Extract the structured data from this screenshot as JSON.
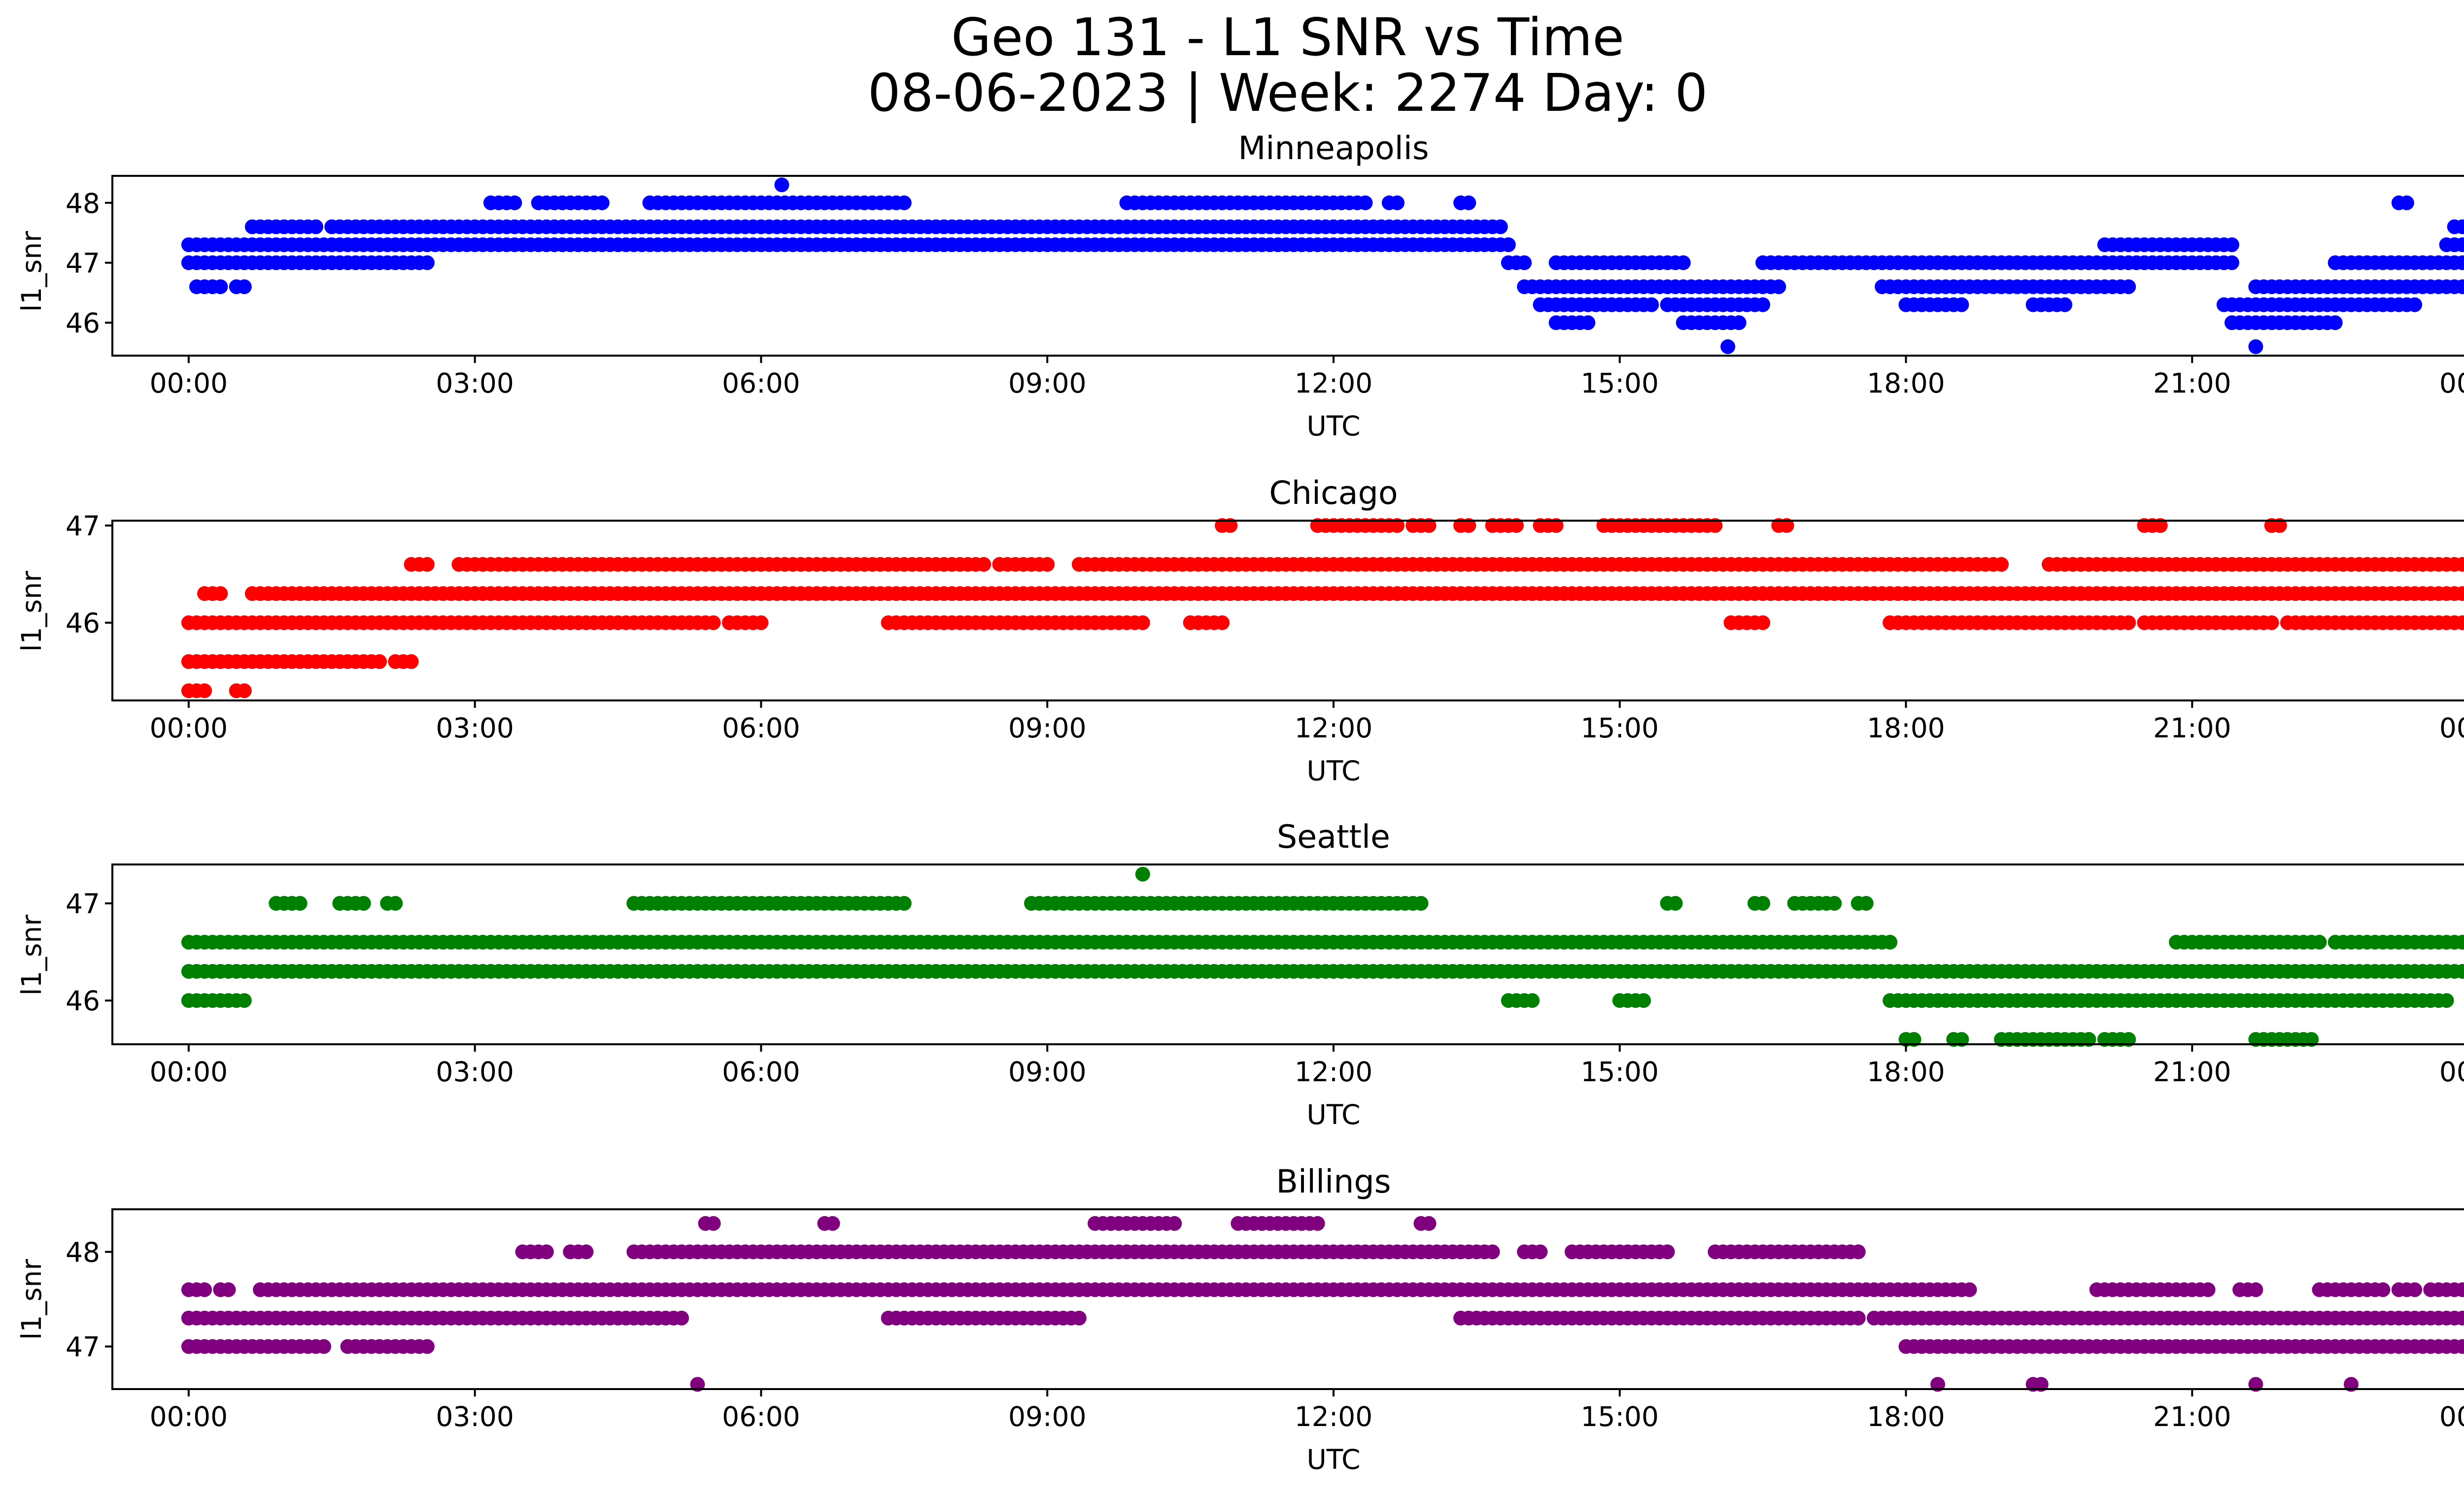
{
  "figure": {
    "title_line1": "Geo 131 - L1 SNR vs Time",
    "title_line2": "08-06-2023 | Week: 2274 Day: 0"
  },
  "chart_data": [
    {
      "type": "scatter",
      "title": "Minneapolis",
      "xlabel": "UTC",
      "ylabel": "l1_snr",
      "color": "#0000ff",
      "xlim": [
        "-00:48",
        "24:48"
      ],
      "ylim": [
        45.45,
        48.45
      ],
      "yticks": [
        46,
        47,
        48
      ],
      "xtick_labels": [
        "00:00",
        "03:00",
        "06:00",
        "09:00",
        "12:00",
        "15:00",
        "18:00",
        "21:00",
        "00:00"
      ],
      "series": [
        {
          "name": "snr 47.3",
          "y": 47.3,
          "ranges": [
            [
              "00:00",
              "13:50"
            ],
            [
              "20:05",
              "21:25"
            ],
            [
              "23:40",
              "24:00"
            ]
          ]
        },
        {
          "name": "snr 47.0",
          "y": 47.0,
          "ranges": [
            [
              "00:00",
              "02:30"
            ],
            [
              "13:50",
              "14:00"
            ],
            [
              "14:20",
              "15:40"
            ],
            [
              "16:30",
              "21:25"
            ],
            [
              "22:30",
              "24:00"
            ]
          ]
        },
        {
          "name": "snr 47.6",
          "y": 47.6,
          "ranges": [
            [
              "00:40",
              "01:20"
            ],
            [
              "01:30",
              "13:45"
            ],
            [
              "23:45",
              "23:55"
            ]
          ]
        },
        {
          "name": "snr 48.0",
          "y": 48.0,
          "ranges": [
            [
              "03:10",
              "03:25"
            ],
            [
              "03:40",
              "04:20"
            ],
            [
              "04:50",
              "07:30"
            ],
            [
              "09:50",
              "12:20"
            ],
            [
              "12:35",
              "12:40"
            ],
            [
              "13:20",
              "13:25"
            ],
            [
              "23:10",
              "23:15"
            ]
          ]
        },
        {
          "name": "snr 46.6",
          "y": 46.6,
          "ranges": [
            [
              "00:05",
              "00:10"
            ],
            [
              "00:15",
              "00:20"
            ],
            [
              "00:30",
              "00:35"
            ],
            [
              "14:00",
              "16:40"
            ],
            [
              "17:45",
              "20:20"
            ],
            [
              "21:40",
              "24:00"
            ]
          ]
        },
        {
          "name": "snr 46.3",
          "y": 46.3,
          "ranges": [
            [
              "14:10",
              "15:20"
            ],
            [
              "15:30",
              "16:30"
            ],
            [
              "18:00",
              "18:35"
            ],
            [
              "19:20",
              "19:40"
            ],
            [
              "21:20",
              "23:20"
            ]
          ]
        },
        {
          "name": "snr 46.0",
          "y": 46.0,
          "ranges": [
            [
              "14:20",
              "14:40"
            ],
            [
              "15:40",
              "16:00"
            ],
            [
              "16:05",
              "16:15"
            ],
            [
              "21:25",
              "22:30"
            ]
          ]
        },
        {
          "name": "snr 48.3",
          "y": 48.3,
          "points": [
            "06:13"
          ]
        },
        {
          "name": "snr 45.6",
          "y": 45.6,
          "points": [
            "16:08",
            "21:40"
          ]
        }
      ]
    },
    {
      "type": "scatter",
      "title": "Chicago",
      "xlabel": "UTC",
      "ylabel": "l1_snr",
      "color": "#ff0000",
      "xlim": [
        "-00:48",
        "24:48"
      ],
      "ylim": [
        45.2,
        47.05
      ],
      "yticks": [
        46,
        47
      ],
      "xtick_labels": [
        "00:00",
        "03:00",
        "06:00",
        "09:00",
        "12:00",
        "15:00",
        "18:00",
        "21:00",
        "00:00"
      ],
      "series": [
        {
          "name": "snr 46.3",
          "y": 46.3,
          "ranges": [
            [
              "00:10",
              "00:20"
            ],
            [
              "00:40",
              "24:00"
            ]
          ]
        },
        {
          "name": "snr 46.0",
          "y": 46.0,
          "ranges": [
            [
              "00:00",
              "03:00"
            ],
            [
              "03:00",
              "05:30"
            ],
            [
              "05:40",
              "06:00"
            ],
            [
              "07:20",
              "10:00"
            ],
            [
              "10:30",
              "10:50"
            ],
            [
              "16:10",
              "16:30"
            ],
            [
              "17:50",
              "20:20"
            ],
            [
              "20:30",
              "21:50"
            ],
            [
              "22:00",
              "24:00"
            ]
          ]
        },
        {
          "name": "snr 46.6",
          "y": 46.6,
          "ranges": [
            [
              "02:20",
              "02:30"
            ],
            [
              "02:50",
              "08:20"
            ],
            [
              "08:30",
              "09:00"
            ],
            [
              "09:20",
              "19:00"
            ],
            [
              "19:30",
              "24:00"
            ]
          ]
        },
        {
          "name": "snr 45.6",
          "y": 45.6,
          "ranges": [
            [
              "00:00",
              "02:00"
            ],
            [
              "02:10",
              "02:20"
            ]
          ]
        },
        {
          "name": "snr 45.3",
          "y": 45.3,
          "ranges": [
            [
              "00:00",
              "00:10"
            ],
            [
              "00:30",
              "00:35"
            ]
          ]
        },
        {
          "name": "snr 47.0",
          "y": 47.0,
          "ranges": [
            [
              "10:50",
              "10:55"
            ],
            [
              "11:50",
              "12:40"
            ],
            [
              "12:50",
              "13:00"
            ],
            [
              "13:20",
              "13:25"
            ],
            [
              "13:40",
              "13:55"
            ],
            [
              "14:10",
              "14:20"
            ],
            [
              "14:50",
              "16:00"
            ],
            [
              "16:40",
              "16:45"
            ],
            [
              "20:30",
              "20:40"
            ],
            [
              "21:50",
              "21:55"
            ]
          ]
        }
      ]
    },
    {
      "type": "scatter",
      "title": "Seattle",
      "xlabel": "UTC",
      "ylabel": "l1_snr",
      "color": "#008000",
      "xlim": [
        "-00:48",
        "24:48"
      ],
      "ylim": [
        45.55,
        47.4
      ],
      "yticks": [
        46,
        47
      ],
      "xtick_labels": [
        "00:00",
        "03:00",
        "06:00",
        "09:00",
        "12:00",
        "15:00",
        "18:00",
        "21:00",
        "00:00"
      ],
      "series": [
        {
          "name": "snr 46.6",
          "y": 46.6,
          "ranges": [
            [
              "00:00",
              "17:50"
            ],
            [
              "20:50",
              "22:20"
            ],
            [
              "22:30",
              "24:00"
            ]
          ]
        },
        {
          "name": "snr 46.3",
          "y": 46.3,
          "ranges": [
            [
              "00:00",
              "24:00"
            ]
          ]
        },
        {
          "name": "snr 46.0",
          "y": 46.0,
          "ranges": [
            [
              "00:00",
              "00:35"
            ],
            [
              "13:50",
              "14:05"
            ],
            [
              "15:00",
              "15:15"
            ],
            [
              "17:50",
              "23:40"
            ]
          ]
        },
        {
          "name": "snr 47.0",
          "y": 47.0,
          "ranges": [
            [
              "00:55",
              "01:10"
            ],
            [
              "01:35",
              "01:50"
            ],
            [
              "02:05",
              "02:10"
            ],
            [
              "04:40",
              "07:30"
            ],
            [
              "08:50",
              "12:55"
            ],
            [
              "15:30",
              "15:35"
            ],
            [
              "16:25",
              "16:30"
            ],
            [
              "16:50",
              "17:15"
            ],
            [
              "17:30",
              "17:35"
            ]
          ]
        },
        {
          "name": "snr 45.6",
          "y": 45.6,
          "ranges": [
            [
              "18:00",
              "18:05"
            ],
            [
              "18:30",
              "18:35"
            ],
            [
              "19:00",
              "19:55"
            ],
            [
              "20:05",
              "20:20"
            ],
            [
              "21:40",
              "22:15"
            ]
          ]
        },
        {
          "name": "snr 47.3",
          "y": 47.3,
          "points": [
            "10:00"
          ]
        }
      ]
    },
    {
      "type": "scatter",
      "title": "Billings",
      "xlabel": "UTC",
      "ylabel": "l1_snr",
      "color": "#800080",
      "xlim": [
        "-00:48",
        "24:48"
      ],
      "ylim": [
        46.55,
        48.45
      ],
      "yticks": [
        47,
        48
      ],
      "xtick_labels": [
        "00:00",
        "03:00",
        "06:00",
        "09:00",
        "12:00",
        "15:00",
        "18:00",
        "21:00",
        "00:00"
      ],
      "series": [
        {
          "name": "snr 47.6",
          "y": 47.6,
          "ranges": [
            [
              "00:00",
              "00:10"
            ],
            [
              "00:20",
              "00:25"
            ],
            [
              "00:45",
              "18:40"
            ],
            [
              "20:00",
              "21:10"
            ],
            [
              "21:30",
              "21:40"
            ],
            [
              "22:20",
              "23:00"
            ],
            [
              "23:10",
              "23:20"
            ],
            [
              "23:30",
              "24:00"
            ]
          ]
        },
        {
          "name": "snr 47.3",
          "y": 47.3,
          "ranges": [
            [
              "00:00",
              "05:10"
            ],
            [
              "07:20",
              "09:20"
            ],
            [
              "13:20",
              "17:30"
            ],
            [
              "17:40",
              "24:00"
            ]
          ]
        },
        {
          "name": "snr 47.0",
          "y": 47.0,
          "ranges": [
            [
              "00:00",
              "00:55"
            ],
            [
              "01:00",
              "01:25"
            ],
            [
              "01:40",
              "02:30"
            ],
            [
              "18:00",
              "24:00"
            ]
          ]
        },
        {
          "name": "snr 48.0",
          "y": 48.0,
          "ranges": [
            [
              "03:30",
              "03:45"
            ],
            [
              "04:00",
              "04:10"
            ],
            [
              "04:40",
              "13:40"
            ],
            [
              "14:00",
              "14:10"
            ],
            [
              "14:30",
              "15:30"
            ],
            [
              "16:00",
              "17:30"
            ]
          ]
        },
        {
          "name": "snr 48.3",
          "y": 48.3,
          "ranges": [
            [
              "05:25",
              "05:30"
            ],
            [
              "06:40",
              "06:45"
            ],
            [
              "09:30",
              "10:20"
            ],
            [
              "11:00",
              "11:50"
            ],
            [
              "12:55",
              "13:00"
            ]
          ]
        },
        {
          "name": "snr 46.6",
          "y": 46.6,
          "points": [
            "05:20",
            "18:20",
            "19:20",
            "19:25",
            "21:40",
            "22:40"
          ]
        }
      ]
    }
  ]
}
